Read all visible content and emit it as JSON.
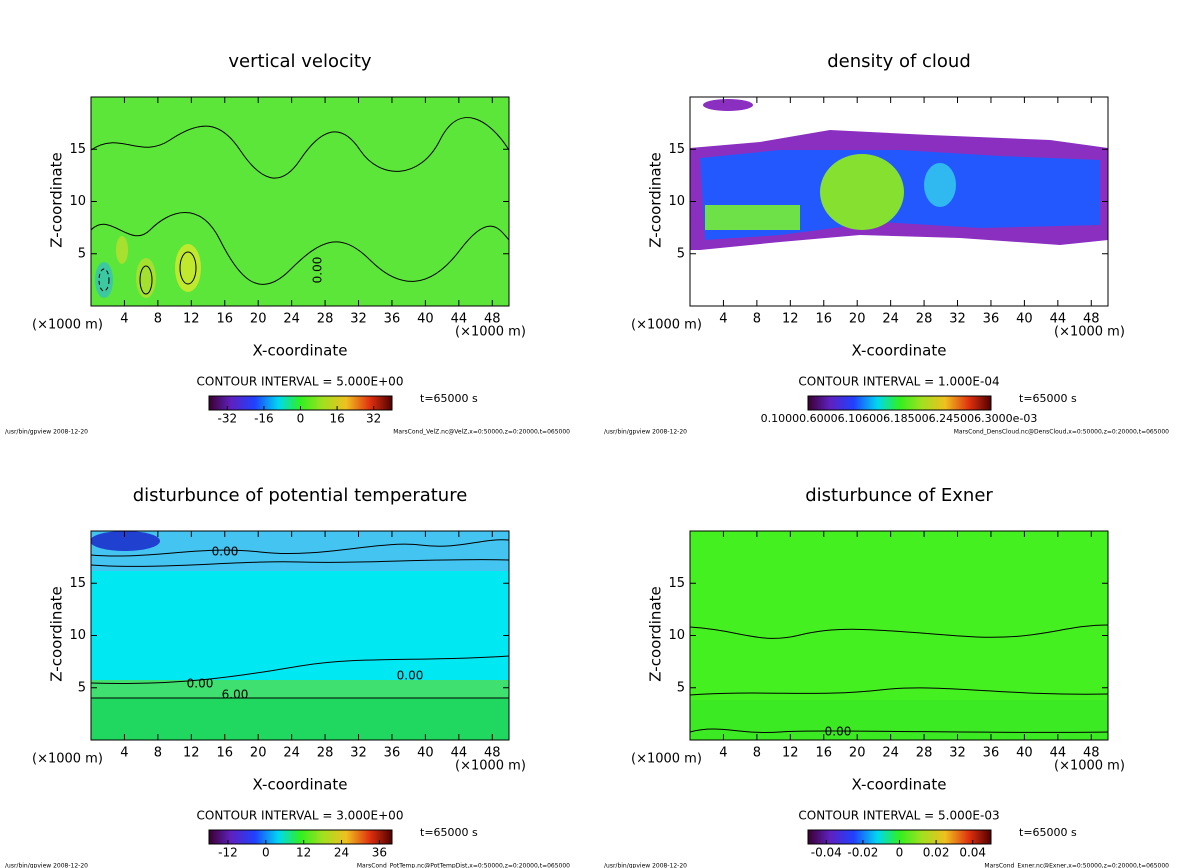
{
  "chart_data": [
    {
      "type": "contour",
      "title": "vertical velocity",
      "xlabel": "X-coordinate",
      "ylabel": "Z-coordinate",
      "x_unit": "(×1000 m)",
      "xlim": [
        0,
        50
      ],
      "xticks": [
        4,
        8,
        12,
        16,
        20,
        24,
        28,
        32,
        36,
        40,
        44,
        48
      ],
      "ylim": [
        0,
        20
      ],
      "yticks": [
        5,
        10,
        15
      ],
      "contour_interval": "CONTOUR INTERVAL = 5.000E+00",
      "time": "t=65000 s",
      "colorbar_lim": [
        -40,
        40
      ],
      "colorbar_ticks": [
        -32,
        -16,
        0,
        16,
        32
      ],
      "annotations": [
        "0.00"
      ],
      "footer_left": "/usr/bin/gpview  2008-12-20",
      "footer_right": "MarsCond_VelZ.nc@VelZ,x=0:50000,z=0:20000,t=065000"
    },
    {
      "type": "contour",
      "title": "density of cloud",
      "xlabel": "X-coordinate",
      "ylabel": "Z-coordinate",
      "x_unit": "(×1000 m)",
      "xlim": [
        0,
        50
      ],
      "xticks": [
        4,
        8,
        12,
        16,
        20,
        24,
        28,
        32,
        36,
        40,
        44,
        48
      ],
      "ylim": [
        0,
        20
      ],
      "yticks": [
        5,
        10,
        15
      ],
      "contour_interval": "CONTOUR INTERVAL = 1.000E-04",
      "time": "t=65000 s",
      "colorbar_label": "0.10000.60006.106006.185006.245006.3000e-03",
      "annotations": [],
      "footer_left": "/usr/bin/gpview  2008-12-20",
      "footer_right": "MarsCond_DensCloud.nc@DensCloud,x=0:50000,z=0:20000,t=065000"
    },
    {
      "type": "contour",
      "title": "disturbunce of potential temperature",
      "xlabel": "X-coordinate",
      "ylabel": "Z-coordinate",
      "x_unit": "(×1000 m)",
      "xlim": [
        0,
        50
      ],
      "xticks": [
        4,
        8,
        12,
        16,
        20,
        24,
        28,
        32,
        36,
        40,
        44,
        48
      ],
      "ylim": [
        0,
        20
      ],
      "yticks": [
        5,
        10,
        15
      ],
      "contour_interval": "CONTOUR INTERVAL = 3.000E+00",
      "time": "t=65000 s",
      "colorbar_lim": [
        -18,
        40
      ],
      "colorbar_ticks": [
        -12,
        0,
        12,
        24,
        36
      ],
      "annotations": [
        "0.00",
        "0.00",
        "6.00",
        "0.00"
      ],
      "footer_left": "/usr/bin/gpview  2008-12-20",
      "footer_right": "MarsCond_PotTemp.nc@PotTempDist,x=0:50000,z=0:20000,t=065000"
    },
    {
      "type": "contour",
      "title": "disturbunce of Exner",
      "xlabel": "X-coordinate",
      "ylabel": "Z-coordinate",
      "x_unit": "(×1000 m)",
      "xlim": [
        0,
        50
      ],
      "xticks": [
        4,
        8,
        12,
        16,
        20,
        24,
        28,
        32,
        36,
        40,
        44,
        48
      ],
      "ylim": [
        0,
        20
      ],
      "yticks": [
        5,
        10,
        15
      ],
      "contour_interval": "CONTOUR INTERVAL = 5.000E-03",
      "time": "t=65000 s",
      "colorbar_lim": [
        -0.05,
        0.05
      ],
      "colorbar_ticks": [
        -0.04,
        -0.02,
        0,
        0.02,
        0.04
      ],
      "annotations": [
        "0.00"
      ],
      "footer_left": "/usr/bin/gpview  2008-12-20",
      "footer_right": "MarsCond_Exner.nc@Exner,x=0:50000,z=0:20000,t=065000"
    }
  ]
}
